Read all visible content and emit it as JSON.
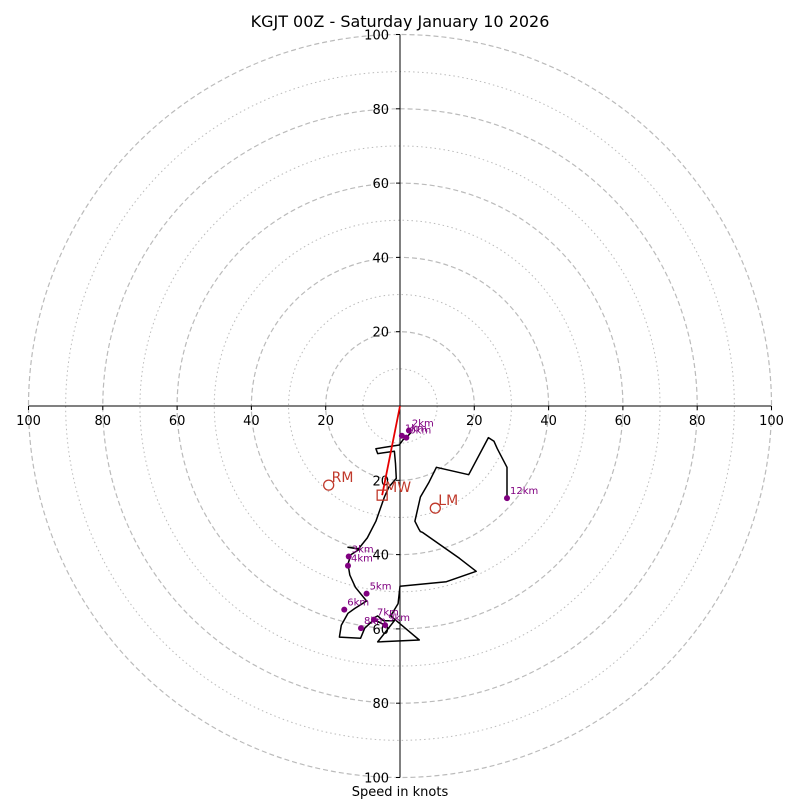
{
  "chart_data": {
    "type": "hodograph",
    "title": "KGJT 00Z - Saturday January 10 2026",
    "xlabel": "Speed in knots",
    "range": [
      -100,
      100
    ],
    "ring_major": [
      20,
      40,
      60,
      80,
      100
    ],
    "ring_minor": [
      10,
      30,
      50,
      70,
      90
    ],
    "x_ticks": [
      {
        "value": -100,
        "label": "100"
      },
      {
        "value": -80,
        "label": "80"
      },
      {
        "value": -60,
        "label": "60"
      },
      {
        "value": -40,
        "label": "40"
      },
      {
        "value": -20,
        "label": "20"
      },
      {
        "value": 20,
        "label": "20"
      },
      {
        "value": 40,
        "label": "40"
      },
      {
        "value": 60,
        "label": "60"
      },
      {
        "value": 80,
        "label": "80"
      },
      {
        "value": 100,
        "label": "100"
      }
    ],
    "y_ticks": [
      {
        "value": 100,
        "label": "100"
      },
      {
        "value": 80,
        "label": "80"
      },
      {
        "value": 60,
        "label": "60"
      },
      {
        "value": 40,
        "label": "40"
      },
      {
        "value": 20,
        "label": "20"
      },
      {
        "value": -20,
        "label": "20"
      },
      {
        "value": -40,
        "label": "40"
      },
      {
        "value": -60,
        "label": "60"
      },
      {
        "value": -80,
        "label": "80"
      },
      {
        "value": -100,
        "label": "100"
      }
    ],
    "hodograph": {
      "color": "#000000",
      "points": [
        [
          2.4,
          -6.6
        ],
        [
          2.9,
          -7.2
        ],
        [
          1.7,
          -8.5
        ],
        [
          0.8,
          -9.1
        ],
        [
          -0.2,
          -10.5
        ],
        [
          -6.5,
          -11.5
        ],
        [
          -6.0,
          -12.8
        ],
        [
          -1.5,
          -12.2
        ],
        [
          -1.2,
          -15.5
        ],
        [
          -1.0,
          -19.5
        ],
        [
          -3.0,
          -21.8
        ],
        [
          -4.2,
          -24.5
        ],
        [
          -6.5,
          -31.0
        ],
        [
          -8.8,
          -35.5
        ],
        [
          -11.2,
          -38.5
        ],
        [
          -14.0,
          -38.0
        ],
        [
          -10.8,
          -38.5
        ],
        [
          -13.2,
          -40.0
        ],
        [
          -14.0,
          -42.5
        ],
        [
          -13.5,
          -45.5
        ],
        [
          -12.0,
          -48.8
        ],
        [
          -9.0,
          -52.5
        ],
        [
          -12.2,
          -54.5
        ],
        [
          -14.0,
          -55.8
        ],
        [
          -15.8,
          -59.0
        ],
        [
          -16.3,
          -62.2
        ],
        [
          -10.6,
          -62.5
        ],
        [
          -9.5,
          -59.8
        ],
        [
          -7.0,
          -57.5
        ],
        [
          -4.0,
          -59.0
        ],
        [
          -7.5,
          -57.3
        ],
        [
          -6.0,
          -56.5
        ],
        [
          -4.5,
          -57.8
        ],
        [
          -1.5,
          -57.8
        ],
        [
          -6.0,
          -63.5
        ],
        [
          5.2,
          -63.0
        ],
        [
          -2.5,
          -56.5
        ],
        [
          -0.5,
          -53.2
        ],
        [
          0.0,
          -48.5
        ],
        [
          12.5,
          -47.3
        ],
        [
          20.5,
          -44.5
        ],
        [
          16.0,
          -41.0
        ],
        [
          6.0,
          -34.0
        ],
        [
          5.5,
          -33.8
        ],
        [
          5.0,
          -33.0
        ],
        [
          4.0,
          -31.0
        ],
        [
          5.5,
          -24.5
        ],
        [
          7.8,
          -20.5
        ],
        [
          9.8,
          -16.5
        ],
        [
          18.5,
          -18.5
        ],
        [
          23.8,
          -8.5
        ],
        [
          25.3,
          -9.5
        ],
        [
          26.2,
          -11.5
        ],
        [
          28.8,
          -16.5
        ],
        [
          28.8,
          -24.8
        ]
      ]
    },
    "height_markers": [
      {
        "label": "0km",
        "u": 1.7,
        "v": -8.5
      },
      {
        "label": "1km",
        "u": 0.5,
        "v": -8.0
      },
      {
        "label": "2km",
        "u": 2.4,
        "v": -6.6
      },
      {
        "label": "3km",
        "u": -13.8,
        "v": -40.5
      },
      {
        "label": "4km",
        "u": -14.0,
        "v": -43.0
      },
      {
        "label": "5km",
        "u": -9.0,
        "v": -50.5
      },
      {
        "label": "6km",
        "u": -15.0,
        "v": -54.8
      },
      {
        "label": "7km",
        "u": -7.0,
        "v": -57.5
      },
      {
        "label": "8km",
        "u": -10.5,
        "v": -59.8
      },
      {
        "label": "9km",
        "u": -4.0,
        "v": -59.0
      },
      {
        "label": "12km",
        "u": 28.8,
        "v": -24.8
      }
    ],
    "marker_color": "#800080",
    "mean_wind_line": {
      "from": [
        0,
        0
      ],
      "to": [
        -4.8,
        -24.0
      ],
      "color": "#e60000"
    },
    "storm_motion": [
      {
        "label": "RM",
        "u": -19.2,
        "v": -21.3,
        "shape": "circle"
      },
      {
        "label": "MW",
        "u": -4.8,
        "v": -24.0,
        "shape": "square"
      },
      {
        "label": "LM",
        "u": 9.5,
        "v": -27.5,
        "shape": "circle"
      }
    ],
    "storm_color": "#c0392b",
    "ring_color": "#bbbbbb"
  }
}
